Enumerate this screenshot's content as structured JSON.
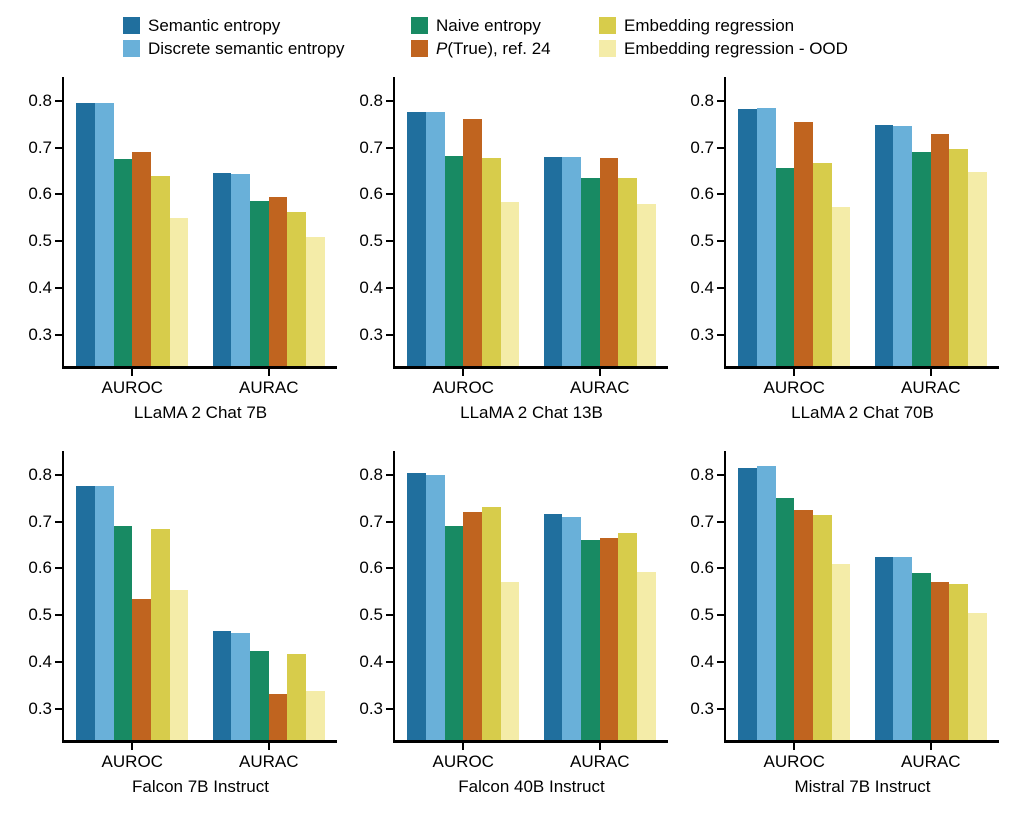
{
  "figure": {
    "background": "#ffffff",
    "text_color": "#000000",
    "axis_color": "#000000"
  },
  "legend": {
    "position": "top",
    "items": [
      {
        "label": "Semantic entropy",
        "color": "#206F9E"
      },
      {
        "label": "Discrete semantic entropy",
        "color": "#69B0D9"
      },
      {
        "label": "Naive entropy",
        "color": "#188A63"
      },
      {
        "label_prefix": "P",
        "label_rest": "(True), ref. 24",
        "color": "#C0641F"
      },
      {
        "label": "Embedding regression",
        "color": "#D7CC4B"
      },
      {
        "label": "Embedding regression - OOD",
        "color": "#F4ECA8"
      }
    ]
  },
  "chart_data": [
    {
      "type": "bar",
      "title": "LLaMA 2 Chat 7B",
      "categories": [
        "AUROC",
        "AURAC"
      ],
      "yticks": [
        0.3,
        0.4,
        0.5,
        0.6,
        0.7,
        0.8
      ],
      "ylim": [
        0.235,
        0.85
      ],
      "grid": false,
      "series": [
        {
          "name": "Semantic entropy",
          "color": "#206F9E",
          "values": [
            0.795,
            0.645
          ]
        },
        {
          "name": "Discrete semantic entropy",
          "color": "#69B0D9",
          "values": [
            0.794,
            0.643
          ]
        },
        {
          "name": "Naive entropy",
          "color": "#188A63",
          "values": [
            0.675,
            0.586
          ]
        },
        {
          "name": "P(True), ref. 24",
          "color": "#C0641F",
          "values": [
            0.691,
            0.594
          ]
        },
        {
          "name": "Embedding regression",
          "color": "#D7CC4B",
          "values": [
            0.64,
            0.562
          ]
        },
        {
          "name": "Embedding regression - OOD",
          "color": "#F4ECA8",
          "values": [
            0.55,
            0.51
          ]
        }
      ]
    },
    {
      "type": "bar",
      "title": "LLaMA 2 Chat 13B",
      "categories": [
        "AUROC",
        "AURAC"
      ],
      "yticks": [
        0.3,
        0.4,
        0.5,
        0.6,
        0.7,
        0.8
      ],
      "ylim": [
        0.235,
        0.85
      ],
      "grid": false,
      "series": [
        {
          "name": "Semantic entropy",
          "color": "#206F9E",
          "values": [
            0.775,
            0.679
          ]
        },
        {
          "name": "Discrete semantic entropy",
          "color": "#69B0D9",
          "values": [
            0.775,
            0.679
          ]
        },
        {
          "name": "Naive entropy",
          "color": "#188A63",
          "values": [
            0.682,
            0.635
          ]
        },
        {
          "name": "P(True), ref. 24",
          "color": "#C0641F",
          "values": [
            0.76,
            0.677
          ]
        },
        {
          "name": "Embedding regression",
          "color": "#D7CC4B",
          "values": [
            0.678,
            0.636
          ]
        },
        {
          "name": "Embedding regression - OOD",
          "color": "#F4ECA8",
          "values": [
            0.583,
            0.58
          ]
        }
      ]
    },
    {
      "type": "bar",
      "title": "LLaMA 2 Chat 70B",
      "categories": [
        "AUROC",
        "AURAC"
      ],
      "yticks": [
        0.3,
        0.4,
        0.5,
        0.6,
        0.7,
        0.8
      ],
      "ylim": [
        0.235,
        0.85
      ],
      "grid": false,
      "series": [
        {
          "name": "Semantic entropy",
          "color": "#206F9E",
          "values": [
            0.781,
            0.748
          ]
        },
        {
          "name": "Discrete semantic entropy",
          "color": "#69B0D9",
          "values": [
            0.784,
            0.745
          ]
        },
        {
          "name": "Naive entropy",
          "color": "#188A63",
          "values": [
            0.657,
            0.69
          ]
        },
        {
          "name": "P(True), ref. 24",
          "color": "#C0641F",
          "values": [
            0.754,
            0.729
          ]
        },
        {
          "name": "Embedding regression",
          "color": "#D7CC4B",
          "values": [
            0.668,
            0.697
          ]
        },
        {
          "name": "Embedding regression - OOD",
          "color": "#F4ECA8",
          "values": [
            0.574,
            0.648
          ]
        }
      ]
    },
    {
      "type": "bar",
      "title": "Falcon 7B Instruct",
      "categories": [
        "AUROC",
        "AURAC"
      ],
      "yticks": [
        0.3,
        0.4,
        0.5,
        0.6,
        0.7,
        0.8
      ],
      "ylim": [
        0.235,
        0.85
      ],
      "grid": false,
      "series": [
        {
          "name": "Semantic entropy",
          "color": "#206F9E",
          "values": [
            0.776,
            0.468
          ]
        },
        {
          "name": "Discrete semantic entropy",
          "color": "#69B0D9",
          "values": [
            0.776,
            0.463
          ]
        },
        {
          "name": "Naive entropy",
          "color": "#188A63",
          "values": [
            0.691,
            0.425
          ]
        },
        {
          "name": "P(True), ref. 24",
          "color": "#C0641F",
          "values": [
            0.536,
            0.333
          ]
        },
        {
          "name": "Embedding regression",
          "color": "#D7CC4B",
          "values": [
            0.685,
            0.419
          ]
        },
        {
          "name": "Embedding regression - OOD",
          "color": "#F4ECA8",
          "values": [
            0.554,
            0.339
          ]
        }
      ]
    },
    {
      "type": "bar",
      "title": "Falcon 40B Instruct",
      "categories": [
        "AUROC",
        "AURAC"
      ],
      "yticks": [
        0.3,
        0.4,
        0.5,
        0.6,
        0.7,
        0.8
      ],
      "ylim": [
        0.235,
        0.85
      ],
      "grid": false,
      "series": [
        {
          "name": "Semantic entropy",
          "color": "#206F9E",
          "values": [
            0.803,
            0.716
          ]
        },
        {
          "name": "Discrete semantic entropy",
          "color": "#69B0D9",
          "values": [
            0.799,
            0.71
          ]
        },
        {
          "name": "Naive entropy",
          "color": "#188A63",
          "values": [
            0.691,
            0.66
          ]
        },
        {
          "name": "P(True), ref. 24",
          "color": "#C0641F",
          "values": [
            0.72,
            0.665
          ]
        },
        {
          "name": "Embedding regression",
          "color": "#D7CC4B",
          "values": [
            0.73,
            0.676
          ]
        },
        {
          "name": "Embedding regression - OOD",
          "color": "#F4ECA8",
          "values": [
            0.571,
            0.592
          ]
        }
      ]
    },
    {
      "type": "bar",
      "title": "Mistral 7B Instruct",
      "categories": [
        "AUROC",
        "AURAC"
      ],
      "yticks": [
        0.3,
        0.4,
        0.5,
        0.6,
        0.7,
        0.8
      ],
      "ylim": [
        0.235,
        0.85
      ],
      "grid": false,
      "series": [
        {
          "name": "Semantic entropy",
          "color": "#206F9E",
          "values": [
            0.814,
            0.624
          ]
        },
        {
          "name": "Discrete semantic entropy",
          "color": "#69B0D9",
          "values": [
            0.819,
            0.624
          ]
        },
        {
          "name": "Naive entropy",
          "color": "#188A63",
          "values": [
            0.749,
            0.591
          ]
        },
        {
          "name": "P(True), ref. 24",
          "color": "#C0641F",
          "values": [
            0.724,
            0.572
          ]
        },
        {
          "name": "Embedding regression",
          "color": "#D7CC4B",
          "values": [
            0.713,
            0.568
          ]
        },
        {
          "name": "Embedding regression - OOD",
          "color": "#F4ECA8",
          "values": [
            0.61,
            0.505
          ]
        }
      ]
    }
  ]
}
